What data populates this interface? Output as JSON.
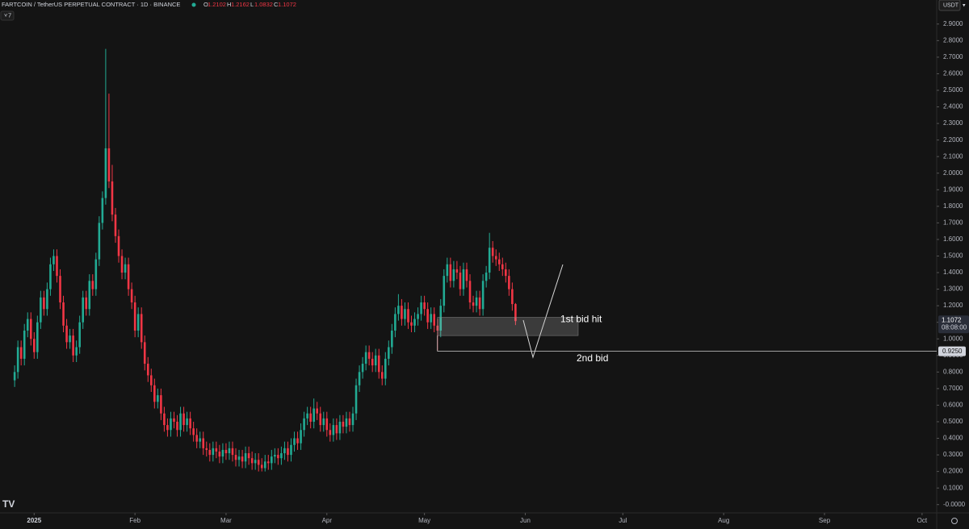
{
  "chart_data": {
    "type": "candlestick",
    "title": "FARTCOIN / TetherUS PERPETUAL CONTRACT · 1D · BINANCE",
    "header_labels": [
      "O",
      "H",
      "L",
      "C"
    ],
    "indicator_toggle": "7",
    "currency": "USDT",
    "countdown": "08:08:00",
    "up_color": "#22ab94",
    "down_color": "#f23645",
    "candles": [
      [
        0.75,
        0.84,
        0.71,
        0.8
      ],
      [
        0.8,
        0.99,
        0.76,
        0.95
      ],
      [
        0.95,
        0.99,
        0.84,
        0.88
      ],
      [
        0.88,
        1.09,
        0.84,
        1.05
      ],
      [
        1.05,
        1.16,
        1.01,
        1.12
      ],
      [
        1.12,
        1.16,
        0.96,
        1.0
      ],
      [
        1.0,
        1.04,
        0.88,
        0.92
      ],
      [
        0.92,
        1.14,
        0.88,
        1.1
      ],
      [
        1.1,
        1.29,
        1.06,
        1.25
      ],
      [
        1.25,
        1.29,
        1.14,
        1.18
      ],
      [
        1.18,
        1.34,
        1.14,
        1.3
      ],
      [
        1.3,
        1.49,
        1.26,
        1.45
      ],
      [
        1.45,
        1.54,
        1.41,
        1.5
      ],
      [
        1.5,
        1.54,
        1.34,
        1.38
      ],
      [
        1.38,
        1.42,
        1.18,
        1.22
      ],
      [
        1.22,
        1.26,
        1.04,
        1.08
      ],
      [
        1.08,
        1.12,
        0.94,
        0.98
      ],
      [
        0.98,
        1.06,
        0.94,
        1.02
      ],
      [
        1.02,
        1.06,
        0.86,
        0.9
      ],
      [
        0.9,
        0.99,
        0.86,
        0.95
      ],
      [
        0.95,
        1.14,
        0.91,
        1.1
      ],
      [
        1.1,
        1.29,
        1.06,
        1.25
      ],
      [
        1.25,
        1.29,
        1.14,
        1.18
      ],
      [
        1.18,
        1.39,
        1.14,
        1.35
      ],
      [
        1.35,
        1.39,
        1.26,
        1.3
      ],
      [
        1.3,
        1.52,
        1.26,
        1.48
      ],
      [
        1.48,
        1.74,
        1.44,
        1.7
      ],
      [
        1.7,
        1.89,
        1.66,
        1.85
      ],
      [
        1.85,
        2.75,
        1.81,
        2.15
      ],
      [
        2.15,
        2.48,
        1.91,
        1.95
      ],
      [
        1.95,
        2.05,
        1.71,
        1.75
      ],
      [
        1.75,
        1.79,
        1.58,
        1.62
      ],
      [
        1.62,
        1.66,
        1.46,
        1.5
      ],
      [
        1.5,
        1.54,
        1.36,
        1.4
      ],
      [
        1.4,
        1.49,
        1.36,
        1.45
      ],
      [
        1.45,
        1.49,
        1.26,
        1.3
      ],
      [
        1.3,
        1.34,
        1.18,
        1.22
      ],
      [
        1.22,
        1.26,
        1.01,
        1.05
      ],
      [
        1.05,
        1.19,
        1.01,
        1.15
      ],
      [
        1.15,
        1.19,
        0.94,
        0.98
      ],
      [
        0.98,
        1.02,
        0.81,
        0.85
      ],
      [
        0.85,
        0.89,
        0.74,
        0.78
      ],
      [
        0.78,
        0.82,
        0.68,
        0.72
      ],
      [
        0.72,
        0.76,
        0.58,
        0.62
      ],
      [
        0.62,
        0.7,
        0.58,
        0.66
      ],
      [
        0.66,
        0.7,
        0.51,
        0.55
      ],
      [
        0.55,
        0.59,
        0.44,
        0.48
      ],
      [
        0.48,
        0.52,
        0.41,
        0.45
      ],
      [
        0.45,
        0.56,
        0.41,
        0.52
      ],
      [
        0.52,
        0.56,
        0.46,
        0.5
      ],
      [
        0.5,
        0.54,
        0.41,
        0.45
      ],
      [
        0.45,
        0.59,
        0.41,
        0.55
      ],
      [
        0.55,
        0.59,
        0.44,
        0.48
      ],
      [
        0.48,
        0.56,
        0.44,
        0.52
      ],
      [
        0.52,
        0.56,
        0.42,
        0.46
      ],
      [
        0.46,
        0.5,
        0.38,
        0.42
      ],
      [
        0.42,
        0.46,
        0.34,
        0.38
      ],
      [
        0.38,
        0.44,
        0.34,
        0.4
      ],
      [
        0.4,
        0.44,
        0.3,
        0.34
      ],
      [
        0.34,
        0.38,
        0.29,
        0.33
      ],
      [
        0.33,
        0.37,
        0.26,
        0.3
      ],
      [
        0.3,
        0.38,
        0.26,
        0.34
      ],
      [
        0.34,
        0.38,
        0.28,
        0.32
      ],
      [
        0.32,
        0.36,
        0.25,
        0.29
      ],
      [
        0.29,
        0.37,
        0.25,
        0.33
      ],
      [
        0.33,
        0.37,
        0.27,
        0.31
      ],
      [
        0.31,
        0.38,
        0.27,
        0.34
      ],
      [
        0.34,
        0.38,
        0.26,
        0.3
      ],
      [
        0.3,
        0.34,
        0.23,
        0.27
      ],
      [
        0.27,
        0.33,
        0.23,
        0.29
      ],
      [
        0.29,
        0.33,
        0.22,
        0.26
      ],
      [
        0.26,
        0.35,
        0.22,
        0.31
      ],
      [
        0.31,
        0.35,
        0.24,
        0.28
      ],
      [
        0.28,
        0.32,
        0.21,
        0.25
      ],
      [
        0.25,
        0.31,
        0.21,
        0.27
      ],
      [
        0.27,
        0.31,
        0.2,
        0.24
      ],
      [
        0.24,
        0.28,
        0.2,
        0.22
      ],
      [
        0.22,
        0.3,
        0.2,
        0.26
      ],
      [
        0.26,
        0.3,
        0.21,
        0.25
      ],
      [
        0.25,
        0.33,
        0.21,
        0.29
      ],
      [
        0.29,
        0.34,
        0.25,
        0.3
      ],
      [
        0.3,
        0.34,
        0.24,
        0.28
      ],
      [
        0.28,
        0.35,
        0.24,
        0.31
      ],
      [
        0.31,
        0.38,
        0.27,
        0.34
      ],
      [
        0.34,
        0.38,
        0.26,
        0.3
      ],
      [
        0.3,
        0.4,
        0.26,
        0.36
      ],
      [
        0.36,
        0.44,
        0.32,
        0.4
      ],
      [
        0.4,
        0.44,
        0.33,
        0.37
      ],
      [
        0.37,
        0.49,
        0.33,
        0.45
      ],
      [
        0.45,
        0.56,
        0.41,
        0.52
      ],
      [
        0.52,
        0.59,
        0.48,
        0.55
      ],
      [
        0.55,
        0.59,
        0.46,
        0.5
      ],
      [
        0.5,
        0.64,
        0.46,
        0.58
      ],
      [
        0.58,
        0.62,
        0.51,
        0.55
      ],
      [
        0.55,
        0.59,
        0.44,
        0.48
      ],
      [
        0.48,
        0.56,
        0.44,
        0.52
      ],
      [
        0.52,
        0.56,
        0.41,
        0.45
      ],
      [
        0.45,
        0.49,
        0.38,
        0.42
      ],
      [
        0.42,
        0.52,
        0.38,
        0.48
      ],
      [
        0.48,
        0.52,
        0.39,
        0.43
      ],
      [
        0.43,
        0.54,
        0.39,
        0.5
      ],
      [
        0.5,
        0.54,
        0.43,
        0.47
      ],
      [
        0.47,
        0.56,
        0.43,
        0.52
      ],
      [
        0.52,
        0.56,
        0.44,
        0.48
      ],
      [
        0.48,
        0.59,
        0.44,
        0.55
      ],
      [
        0.55,
        0.76,
        0.51,
        0.72
      ],
      [
        0.72,
        0.84,
        0.68,
        0.8
      ],
      [
        0.8,
        0.89,
        0.76,
        0.85
      ],
      [
        0.85,
        0.96,
        0.81,
        0.92
      ],
      [
        0.92,
        0.96,
        0.84,
        0.88
      ],
      [
        0.88,
        0.92,
        0.8,
        0.84
      ],
      [
        0.84,
        0.94,
        0.8,
        0.9
      ],
      [
        0.9,
        0.94,
        0.76,
        0.8
      ],
      [
        0.8,
        0.84,
        0.72,
        0.76
      ],
      [
        0.76,
        0.92,
        0.72,
        0.88
      ],
      [
        0.88,
        0.99,
        0.84,
        0.95
      ],
      [
        0.95,
        1.09,
        0.91,
        1.05
      ],
      [
        1.05,
        1.19,
        1.01,
        1.15
      ],
      [
        1.15,
        1.27,
        1.11,
        1.2
      ],
      [
        1.2,
        1.24,
        1.08,
        1.12
      ],
      [
        1.12,
        1.22,
        1.08,
        1.18
      ],
      [
        1.18,
        1.22,
        1.06,
        1.1
      ],
      [
        1.1,
        1.14,
        1.04,
        1.08
      ],
      [
        1.08,
        1.16,
        1.04,
        1.12
      ],
      [
        1.12,
        1.19,
        1.08,
        1.15
      ],
      [
        1.15,
        1.26,
        1.11,
        1.22
      ],
      [
        1.22,
        1.26,
        1.14,
        1.18
      ],
      [
        1.18,
        1.22,
        1.06,
        1.1
      ],
      [
        1.1,
        1.19,
        1.06,
        1.15
      ],
      [
        1.15,
        1.19,
        1.04,
        1.08
      ],
      [
        1.08,
        1.12,
        0.93,
        1.05
      ],
      [
        1.05,
        1.24,
        1.01,
        1.2
      ],
      [
        1.2,
        1.42,
        1.16,
        1.38
      ],
      [
        1.38,
        1.49,
        1.34,
        1.45
      ],
      [
        1.45,
        1.49,
        1.31,
        1.35
      ],
      [
        1.35,
        1.47,
        1.31,
        1.42
      ],
      [
        1.42,
        1.47,
        1.36,
        1.4
      ],
      [
        1.4,
        1.44,
        1.26,
        1.3
      ],
      [
        1.3,
        1.46,
        1.26,
        1.42
      ],
      [
        1.42,
        1.46,
        1.31,
        1.35
      ],
      [
        1.35,
        1.39,
        1.18,
        1.22
      ],
      [
        1.22,
        1.26,
        1.16,
        1.2
      ],
      [
        1.2,
        1.29,
        1.16,
        1.25
      ],
      [
        1.25,
        1.29,
        1.14,
        1.18
      ],
      [
        1.18,
        1.39,
        1.14,
        1.35
      ],
      [
        1.35,
        1.44,
        1.31,
        1.4
      ],
      [
        1.4,
        1.64,
        1.36,
        1.55
      ],
      [
        1.55,
        1.59,
        1.46,
        1.5
      ],
      [
        1.5,
        1.54,
        1.44,
        1.48
      ],
      [
        1.48,
        1.52,
        1.41,
        1.45
      ],
      [
        1.45,
        1.49,
        1.38,
        1.42
      ],
      [
        1.42,
        1.46,
        1.34,
        1.38
      ],
      [
        1.38,
        1.42,
        1.26,
        1.3
      ],
      [
        1.3,
        1.34,
        1.17,
        1.21
      ],
      [
        1.2102,
        1.2162,
        1.0832,
        1.1072
      ]
    ],
    "zone": [
      1.02,
      1.13
    ],
    "level": {
      "value": 0.925,
      "label": "0.9250"
    },
    "annotations": [
      "1st bid hit",
      "2nd bid"
    ],
    "xlim": [
      -4.5,
      283.5
    ],
    "xticks": [
      {
        "value": 6,
        "label": "2025"
      },
      {
        "value": 37,
        "label": "Feb"
      },
      {
        "value": 65,
        "label": "Mar"
      },
      {
        "value": 96,
        "label": "Apr"
      },
      {
        "value": 126,
        "label": "May"
      },
      {
        "value": 157,
        "label": "Jun"
      },
      {
        "value": 187,
        "label": "Jul"
      },
      {
        "value": 218,
        "label": "Aug"
      },
      {
        "value": 249,
        "label": "Sep"
      },
      {
        "value": 279,
        "label": "Oct"
      }
    ],
    "ylim": [
      -0.05,
      3.045
    ],
    "yticks": [
      {
        "value": 0,
        "label": "-0.0000"
      },
      {
        "value": 0.1,
        "label": "0.1000"
      },
      {
        "value": 0.2,
        "label": "0.2000"
      },
      {
        "value": 0.3,
        "label": "0.3000"
      },
      {
        "value": 0.4,
        "label": "0.4000"
      },
      {
        "value": 0.5,
        "label": "0.5000"
      },
      {
        "value": 0.6,
        "label": "0.6000"
      },
      {
        "value": 0.7,
        "label": "0.7000"
      },
      {
        "value": 0.8,
        "label": "0.8000"
      },
      {
        "value": 0.9,
        "label": "0.9000"
      },
      {
        "value": 1.0,
        "label": "1.0000"
      },
      {
        "value": 1.1,
        "label": "1.1000"
      },
      {
        "value": 1.2,
        "label": "1.2000"
      },
      {
        "value": 1.3,
        "label": "1.3000"
      },
      {
        "value": 1.4,
        "label": "1.4000"
      },
      {
        "value": 1.5,
        "label": "1.5000"
      },
      {
        "value": 1.6,
        "label": "1.6000"
      },
      {
        "value": 1.7,
        "label": "1.7000"
      },
      {
        "value": 1.8,
        "label": "1.8000"
      },
      {
        "value": 1.9,
        "label": "1.9000"
      },
      {
        "value": 2.0,
        "label": "2.0000"
      },
      {
        "value": 2.1,
        "label": "2.1000"
      },
      {
        "value": 2.2,
        "label": "2.2000"
      },
      {
        "value": 2.3,
        "label": "2.3000"
      },
      {
        "value": 2.4,
        "label": "2.4000"
      },
      {
        "value": 2.5,
        "label": "2.5000"
      },
      {
        "value": 2.6,
        "label": "2.6000"
      },
      {
        "value": 2.7,
        "label": "2.7000"
      },
      {
        "value": 2.8,
        "label": "2.8000"
      },
      {
        "value": 2.9,
        "label": "2.9000"
      }
    ]
  }
}
